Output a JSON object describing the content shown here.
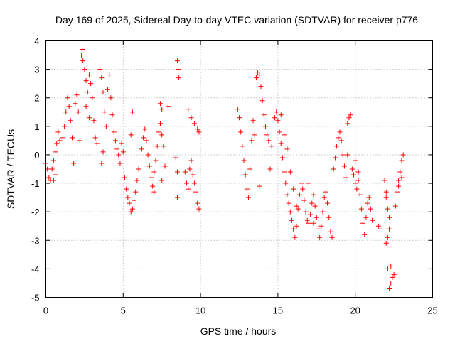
{
  "chart_data": {
    "type": "scatter",
    "title": "Day 169 of 2025, Sidereal Day-to-day VTEC variation (SDTVAR) for receiver p776",
    "xlabel": "GPS time / hours",
    "ylabel": "SDTVAR / TECUs",
    "xlim": [
      0,
      25
    ],
    "ylim": [
      -5,
      4
    ],
    "xticks": [
      0,
      5,
      10,
      15,
      20,
      25
    ],
    "yticks": [
      -5,
      -4,
      -3,
      -2,
      -1,
      0,
      1,
      2,
      3,
      4
    ],
    "grid": true,
    "marker": "+",
    "color": "#ff0000",
    "series": [
      {
        "name": "SDTVAR",
        "points": [
          [
            0.0,
            -0.3
          ],
          [
            0.1,
            -0.5
          ],
          [
            0.2,
            -0.8
          ],
          [
            0.3,
            -0.9
          ],
          [
            0.4,
            -0.5
          ],
          [
            0.5,
            -0.2
          ],
          [
            0.6,
            0.1
          ],
          [
            0.7,
            0.4
          ],
          [
            0.8,
            0.8
          ],
          [
            0.9,
            0.5
          ],
          [
            0.6,
            -0.7
          ],
          [
            0.5,
            -0.9
          ],
          [
            1.1,
            0.6
          ],
          [
            1.2,
            1.0
          ],
          [
            1.3,
            1.5
          ],
          [
            1.4,
            2.0
          ],
          [
            1.5,
            1.7
          ],
          [
            1.6,
            1.2
          ],
          [
            1.7,
            0.6
          ],
          [
            1.8,
            -0.3
          ],
          [
            1.9,
            1.8
          ],
          [
            2.0,
            2.1
          ],
          [
            2.1,
            1.5
          ],
          [
            2.2,
            0.5
          ],
          [
            2.3,
            3.5
          ],
          [
            2.35,
            3.7
          ],
          [
            2.4,
            3.3
          ],
          [
            2.5,
            3.0
          ],
          [
            2.6,
            2.6
          ],
          [
            2.7,
            2.2
          ],
          [
            2.8,
            2.8
          ],
          [
            2.9,
            2.5
          ],
          [
            3.0,
            2.0
          ],
          [
            3.1,
            1.2
          ],
          [
            3.2,
            0.6
          ],
          [
            3.3,
            0.4
          ],
          [
            3.5,
            3.0
          ],
          [
            3.6,
            2.7
          ],
          [
            3.7,
            2.2
          ],
          [
            3.8,
            1.5
          ],
          [
            3.9,
            1.0
          ],
          [
            4.0,
            2.3
          ],
          [
            4.1,
            2.8
          ],
          [
            4.2,
            2.0
          ],
          [
            4.3,
            1.4
          ],
          [
            4.4,
            0.8
          ],
          [
            4.5,
            0.5
          ],
          [
            4.6,
            0.2
          ],
          [
            4.7,
            0.0
          ],
          [
            4.8,
            -0.3
          ],
          [
            4.9,
            0.4
          ],
          [
            5.0,
            0.1
          ],
          [
            3.6,
            -0.3
          ],
          [
            3.7,
            0.1
          ],
          [
            2.6,
            1.7
          ],
          [
            2.8,
            1.3
          ],
          [
            5.1,
            -0.8
          ],
          [
            5.2,
            -1.2
          ],
          [
            5.3,
            -1.5
          ],
          [
            5.4,
            -1.7
          ],
          [
            5.5,
            -2.0
          ],
          [
            5.6,
            -1.9
          ],
          [
            5.7,
            -1.6
          ],
          [
            5.8,
            -1.3
          ],
          [
            5.9,
            -0.9
          ],
          [
            6.0,
            -0.5
          ],
          [
            5.5,
            0.7
          ],
          [
            5.6,
            1.5
          ],
          [
            6.2,
            0.2
          ],
          [
            6.3,
            0.6
          ],
          [
            6.4,
            0.9
          ],
          [
            6.5,
            0.5
          ],
          [
            6.6,
            0.0
          ],
          [
            6.7,
            -0.4
          ],
          [
            6.8,
            -0.8
          ],
          [
            6.9,
            -1.1
          ],
          [
            7.0,
            -0.6
          ],
          [
            7.1,
            -0.2
          ],
          [
            7.2,
            0.3
          ],
          [
            7.3,
            0.8
          ],
          [
            7.4,
            1.1
          ],
          [
            7.5,
            0.7
          ],
          [
            7.6,
            0.3
          ],
          [
            7.7,
            -0.4
          ],
          [
            7.4,
            1.8
          ],
          [
            7.5,
            1.6
          ],
          [
            7.9,
            1.7
          ],
          [
            7.0,
            -1.3
          ],
          [
            7.5,
            -0.9
          ],
          [
            8.5,
            3.3
          ],
          [
            8.55,
            3.0
          ],
          [
            8.6,
            2.7
          ],
          [
            8.4,
            -0.1
          ],
          [
            8.5,
            -0.6
          ],
          [
            8.5,
            -1.5
          ],
          [
            9.0,
            -0.6
          ],
          [
            9.1,
            -1.0
          ],
          [
            9.2,
            -1.2
          ],
          [
            9.3,
            -0.5
          ],
          [
            9.4,
            -0.2
          ],
          [
            9.5,
            -0.7
          ],
          [
            9.6,
            -1.0
          ],
          [
            9.7,
            -1.3
          ],
          [
            9.8,
            -1.7
          ],
          [
            9.9,
            -1.9
          ],
          [
            9.2,
            1.6
          ],
          [
            9.4,
            1.3
          ],
          [
            9.6,
            1.1
          ],
          [
            9.8,
            0.9
          ],
          [
            9.9,
            0.8
          ],
          [
            12.4,
            1.6
          ],
          [
            12.5,
            1.3
          ],
          [
            12.6,
            0.8
          ],
          [
            12.7,
            0.3
          ],
          [
            12.8,
            -0.2
          ],
          [
            12.9,
            -0.7
          ],
          [
            13.0,
            -1.2
          ],
          [
            13.1,
            -1.5
          ],
          [
            13.2,
            -0.5
          ],
          [
            13.3,
            0.5
          ],
          [
            13.4,
            1.2
          ],
          [
            13.5,
            0.7
          ],
          [
            13.6,
            2.7
          ],
          [
            13.7,
            2.9
          ],
          [
            13.8,
            2.8
          ],
          [
            13.9,
            2.4
          ],
          [
            14.0,
            1.9
          ],
          [
            14.1,
            1.4
          ],
          [
            14.2,
            1.0
          ],
          [
            14.3,
            0.7
          ],
          [
            14.4,
            0.5
          ],
          [
            13.8,
            -1.1
          ],
          [
            14.5,
            -0.5
          ],
          [
            14.6,
            0.3
          ],
          [
            14.8,
            1.3
          ],
          [
            14.9,
            1.5
          ],
          [
            15.0,
            1.2
          ],
          [
            15.1,
            0.8
          ],
          [
            15.2,
            0.4
          ],
          [
            15.3,
            -0.1
          ],
          [
            15.4,
            -0.6
          ],
          [
            15.5,
            -1.0
          ],
          [
            15.6,
            -1.4
          ],
          [
            15.7,
            -1.7
          ],
          [
            15.8,
            -2.0
          ],
          [
            15.9,
            -2.3
          ],
          [
            16.0,
            -2.6
          ],
          [
            16.1,
            -2.9
          ],
          [
            16.2,
            -2.5
          ],
          [
            16.3,
            -1.9
          ],
          [
            16.4,
            -1.4
          ],
          [
            16.5,
            -1.0
          ],
          [
            15.2,
            1.4
          ],
          [
            15.4,
            0.7
          ],
          [
            15.6,
            0.2
          ],
          [
            15.8,
            -0.6
          ],
          [
            16.0,
            -1.2
          ],
          [
            16.2,
            -1.8
          ],
          [
            16.6,
            -1.2
          ],
          [
            16.7,
            -1.6
          ],
          [
            16.8,
            -2.0
          ],
          [
            16.9,
            -2.3
          ],
          [
            17.0,
            -2.4
          ],
          [
            17.1,
            -2.1
          ],
          [
            17.2,
            -1.7
          ],
          [
            17.3,
            -1.4
          ],
          [
            17.4,
            -1.8
          ],
          [
            17.5,
            -2.2
          ],
          [
            17.6,
            -2.6
          ],
          [
            17.7,
            -2.9
          ],
          [
            17.8,
            -2.5
          ],
          [
            17.9,
            -2.0
          ],
          [
            18.0,
            -1.5
          ],
          [
            18.1,
            -1.3
          ],
          [
            18.2,
            -1.7
          ],
          [
            18.3,
            -2.2
          ],
          [
            18.4,
            -2.7
          ],
          [
            18.5,
            -2.9
          ],
          [
            17.0,
            -1.0
          ],
          [
            17.3,
            -2.4
          ],
          [
            18.6,
            -0.5
          ],
          [
            18.7,
            -0.1
          ],
          [
            18.8,
            0.3
          ],
          [
            18.9,
            0.6
          ],
          [
            19.0,
            0.8
          ],
          [
            19.1,
            0.5
          ],
          [
            19.2,
            0.0
          ],
          [
            19.3,
            -0.4
          ],
          [
            19.4,
            -0.8
          ],
          [
            19.5,
            1.1
          ],
          [
            19.6,
            1.3
          ],
          [
            19.7,
            1.4
          ],
          [
            19.8,
            -0.5
          ],
          [
            19.9,
            -0.7
          ],
          [
            20.0,
            -1.0
          ],
          [
            20.1,
            -1.2
          ],
          [
            20.2,
            -0.9
          ],
          [
            20.3,
            -1.4
          ],
          [
            20.4,
            -1.9
          ],
          [
            20.5,
            -2.4
          ],
          [
            20.6,
            -2.8
          ],
          [
            20.7,
            -2.2
          ],
          [
            20.8,
            -1.7
          ],
          [
            20.9,
            -1.5
          ],
          [
            21.0,
            -1.9
          ],
          [
            21.1,
            -2.3
          ],
          [
            20.2,
            -0.6
          ],
          [
            20.0,
            -0.2
          ],
          [
            19.5,
            0.0
          ],
          [
            21.5,
            -2.5
          ],
          [
            21.6,
            -2.6
          ],
          [
            21.9,
            -0.9
          ],
          [
            22.0,
            -1.3
          ],
          [
            22.1,
            -1.9
          ],
          [
            22.2,
            -2.6
          ],
          [
            22.0,
            -3.1
          ],
          [
            22.1,
            -2.9
          ],
          [
            22.2,
            -4.7
          ],
          [
            22.3,
            -4.5
          ],
          [
            22.4,
            -4.3
          ],
          [
            22.5,
            -4.2
          ],
          [
            22.1,
            -4.0
          ],
          [
            22.3,
            -3.9
          ],
          [
            22.6,
            -1.8
          ],
          [
            22.7,
            -1.3
          ],
          [
            22.8,
            -0.9
          ],
          [
            22.9,
            -0.6
          ],
          [
            23.0,
            -0.2
          ],
          [
            23.1,
            0.0
          ],
          [
            23.0,
            -0.8
          ],
          [
            22.8,
            -1.1
          ],
          [
            22.0,
            -1.5
          ],
          [
            22.2,
            -2.2
          ]
        ]
      }
    ]
  }
}
